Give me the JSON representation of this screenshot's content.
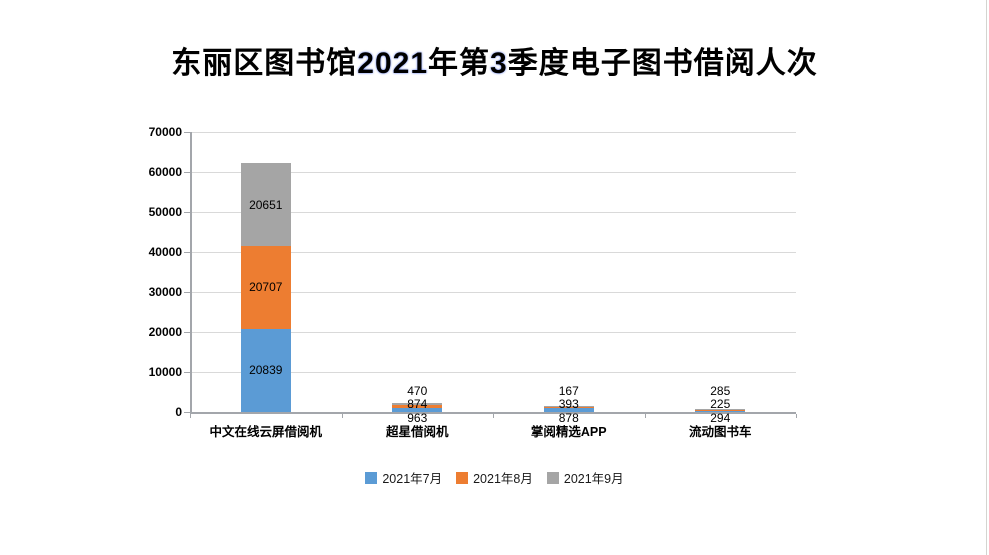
{
  "title": {
    "full_text": "东丽区图书馆2021年第3季度电子图书借阅人次",
    "segments": [
      {
        "text": "东丽区图书馆",
        "accent": false
      },
      {
        "text": "2021",
        "accent": true
      },
      {
        "text": "年第",
        "accent": false
      },
      {
        "text": "3",
        "accent": true
      },
      {
        "text": "季度电子图书借阅人次",
        "accent": false
      }
    ]
  },
  "chart_data": {
    "type": "bar",
    "stacked": true,
    "title": "东丽区图书馆2021年第3季度电子图书借阅人次",
    "categories": [
      "中文在线云屏借阅机",
      "超星借阅机",
      "掌阅精选APP",
      "流动图书车"
    ],
    "series": [
      {
        "name": "2021年7月",
        "color": "#5B9BD5",
        "values": [
          20839,
          963,
          878,
          294
        ]
      },
      {
        "name": "2021年8月",
        "color": "#ED7D31",
        "values": [
          20707,
          874,
          393,
          225
        ]
      },
      {
        "name": "2021年9月",
        "color": "#A5A5A5",
        "values": [
          20651,
          470,
          167,
          285
        ]
      }
    ],
    "ylim": [
      0,
      70000
    ],
    "ytick_step": 10000,
    "ytick_labels": [
      "0",
      "10000",
      "20000",
      "30000",
      "40000",
      "50000",
      "60000",
      "70000"
    ],
    "grid": true,
    "data_labels": true,
    "legend_position": "bottom",
    "legend_entries": [
      "2021年7月",
      "2021年8月",
      "2021年9月"
    ]
  },
  "colors": {
    "series_july": "#5B9BD5",
    "series_august": "#ED7D31",
    "series_september": "#A5A5A5",
    "gridline": "#d9d9d9",
    "axis": "#a3a6ab",
    "text": "#000000",
    "background": "#ffffff"
  }
}
